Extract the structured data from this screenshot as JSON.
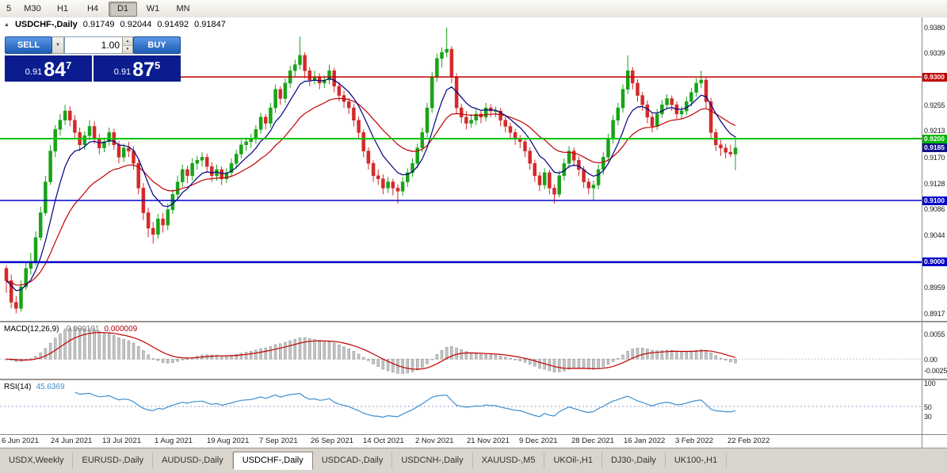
{
  "toolbar": {
    "timeframes": [
      {
        "label": "5",
        "active": false
      },
      {
        "label": "M30",
        "active": false
      },
      {
        "label": "H1",
        "active": false
      },
      {
        "label": "H4",
        "active": false
      },
      {
        "label": "D1",
        "active": true
      },
      {
        "label": "W1",
        "active": false
      },
      {
        "label": "MN",
        "active": false
      }
    ]
  },
  "chart": {
    "marker": "▲",
    "title": "USDCHF-,Daily",
    "ohlc": {
      "open": "0.91749",
      "high": "0.92044",
      "low": "0.91492",
      "close": "0.91847"
    },
    "trade_panel": {
      "sell_label": "SELL",
      "buy_label": "BUY",
      "volume": "1.00",
      "sell_price": {
        "prefix": "0.91",
        "big": "84",
        "sup": "7"
      },
      "buy_price": {
        "prefix": "0.91",
        "big": "87",
        "sup": "5"
      }
    },
    "price_axis_ticks": [
      "0.9380",
      "0.9339",
      "0.9297",
      "0.9255",
      "0.9213",
      "0.9170",
      "0.9128",
      "0.9086",
      "0.9044",
      "0.9002",
      "0.8959",
      "0.8917"
    ],
    "price_labels": [
      {
        "value": "0.9300",
        "color": "#c00000"
      },
      {
        "value": "0.9200",
        "color": "#00b400"
      },
      {
        "value": "0.9185",
        "color": "#12128c"
      },
      {
        "value": "0.9100",
        "color": "#0000c8"
      },
      {
        "value": "0.9000",
        "color": "#0000c8"
      }
    ],
    "hlines": [
      {
        "price": 0.93,
        "color": "#c00000",
        "width": 1.5,
        "from": 0.19
      },
      {
        "price": 0.92,
        "color": "#00c400",
        "width": 2,
        "from": 0
      },
      {
        "price": 0.91,
        "color": "#0000c8",
        "width": 1.5,
        "from": 0
      },
      {
        "price": 0.9,
        "color": "#0000c8",
        "width": 2.5,
        "from": 0
      }
    ]
  },
  "chart_data": {
    "type": "candlestick",
    "symbol": "USDCHF-",
    "timeframe": "Daily",
    "price_range": [
      0.891,
      0.939
    ],
    "up_color": "#18a318",
    "down_color": "#d42a2a",
    "ma_fast_period": 8,
    "ma_fast_color": "#000080",
    "ma_slow_period": 21,
    "ma_slow_color": "#c00000",
    "x_labels": [
      "6 Jun 2021",
      "24 Jun 2021",
      "13 Jul 2021",
      "1 Aug 2021",
      "19 Aug 2021",
      "7 Sep 2021",
      "26 Sep 2021",
      "14 Oct 2021",
      "2 Nov 2021",
      "21 Nov 2021",
      "9 Dec 2021",
      "28 Dec 2021",
      "16 Jan 2022",
      "3 Feb 2022",
      "22 Feb 2022"
    ],
    "candles": [
      [
        0.899,
        0.8995,
        0.895,
        0.897
      ],
      [
        0.897,
        0.898,
        0.8925,
        0.8935
      ],
      [
        0.8935,
        0.8945,
        0.8917,
        0.8925
      ],
      [
        0.8925,
        0.897,
        0.892,
        0.896
      ],
      [
        0.896,
        0.9,
        0.8955,
        0.899
      ],
      [
        0.899,
        0.9015,
        0.898,
        0.9
      ],
      [
        0.9,
        0.905,
        0.8995,
        0.904
      ],
      [
        0.904,
        0.909,
        0.9035,
        0.908
      ],
      [
        0.908,
        0.914,
        0.9075,
        0.913
      ],
      [
        0.913,
        0.919,
        0.9125,
        0.918
      ],
      [
        0.918,
        0.9222,
        0.917,
        0.9215
      ],
      [
        0.9215,
        0.924,
        0.9205,
        0.923
      ],
      [
        0.923,
        0.9255,
        0.9222,
        0.9245
      ],
      [
        0.9245,
        0.9252,
        0.922,
        0.923
      ],
      [
        0.923,
        0.9238,
        0.92,
        0.921
      ],
      [
        0.921,
        0.9218,
        0.918,
        0.919
      ],
      [
        0.919,
        0.9212,
        0.9182,
        0.9205
      ],
      [
        0.9205,
        0.923,
        0.9198,
        0.922
      ],
      [
        0.922,
        0.9228,
        0.9192,
        0.92
      ],
      [
        0.92,
        0.9208,
        0.9175,
        0.9185
      ],
      [
        0.9185,
        0.9202,
        0.9178,
        0.9195
      ],
      [
        0.9195,
        0.9218,
        0.9188,
        0.921
      ],
      [
        0.921,
        0.9216,
        0.9182,
        0.919
      ],
      [
        0.919,
        0.9196,
        0.916,
        0.917
      ],
      [
        0.917,
        0.9192,
        0.9162,
        0.9185
      ],
      [
        0.9185,
        0.9195,
        0.917,
        0.918
      ],
      [
        0.918,
        0.9188,
        0.915,
        0.916
      ],
      [
        0.916,
        0.9165,
        0.911,
        0.912
      ],
      [
        0.912,
        0.9128,
        0.9068,
        0.908
      ],
      [
        0.908,
        0.9088,
        0.904,
        0.9055
      ],
      [
        0.9055,
        0.9065,
        0.903,
        0.9045
      ],
      [
        0.9045,
        0.9078,
        0.9038,
        0.907
      ],
      [
        0.907,
        0.908,
        0.9048,
        0.906
      ],
      [
        0.906,
        0.9095,
        0.9052,
        0.9085
      ],
      [
        0.9085,
        0.9118,
        0.9078,
        0.911
      ],
      [
        0.911,
        0.914,
        0.9102,
        0.913
      ],
      [
        0.913,
        0.9158,
        0.9122,
        0.915
      ],
      [
        0.915,
        0.9156,
        0.9128,
        0.914
      ],
      [
        0.914,
        0.9168,
        0.9132,
        0.916
      ],
      [
        0.916,
        0.9172,
        0.915,
        0.9165
      ],
      [
        0.9165,
        0.9178,
        0.9155,
        0.917
      ],
      [
        0.917,
        0.9176,
        0.9145,
        0.9155
      ],
      [
        0.9155,
        0.9162,
        0.913,
        0.914
      ],
      [
        0.914,
        0.9158,
        0.9132,
        0.915
      ],
      [
        0.915,
        0.9155,
        0.9125,
        0.9135
      ],
      [
        0.9135,
        0.9152,
        0.9128,
        0.9145
      ],
      [
        0.9145,
        0.9168,
        0.9138,
        0.916
      ],
      [
        0.916,
        0.9182,
        0.9152,
        0.9175
      ],
      [
        0.9175,
        0.9198,
        0.9168,
        0.919
      ],
      [
        0.919,
        0.9202,
        0.918,
        0.9195
      ],
      [
        0.9195,
        0.9208,
        0.9185,
        0.92
      ],
      [
        0.92,
        0.9222,
        0.9192,
        0.9215
      ],
      [
        0.9215,
        0.9242,
        0.9208,
        0.9235
      ],
      [
        0.9235,
        0.924,
        0.9215,
        0.9225
      ],
      [
        0.9225,
        0.9258,
        0.9218,
        0.925
      ],
      [
        0.925,
        0.9288,
        0.9242,
        0.928
      ],
      [
        0.928,
        0.9285,
        0.9255,
        0.9265
      ],
      [
        0.9265,
        0.9298,
        0.9258,
        0.929
      ],
      [
        0.929,
        0.9318,
        0.9282,
        0.931
      ],
      [
        0.931,
        0.9328,
        0.93,
        0.932
      ],
      [
        0.932,
        0.9365,
        0.9312,
        0.9335
      ],
      [
        0.9335,
        0.934,
        0.9298,
        0.931
      ],
      [
        0.931,
        0.9316,
        0.9285,
        0.9295
      ],
      [
        0.9295,
        0.931,
        0.9288,
        0.93
      ],
      [
        0.93,
        0.9306,
        0.928,
        0.929
      ],
      [
        0.929,
        0.9302,
        0.9282,
        0.9295
      ],
      [
        0.9295,
        0.932,
        0.9288,
        0.931
      ],
      [
        0.931,
        0.9315,
        0.9275,
        0.9285
      ],
      [
        0.9285,
        0.9292,
        0.926,
        0.927
      ],
      [
        0.927,
        0.9278,
        0.925,
        0.926
      ],
      [
        0.926,
        0.9266,
        0.924,
        0.925
      ],
      [
        0.925,
        0.9256,
        0.922,
        0.923
      ],
      [
        0.923,
        0.9236,
        0.92,
        0.921
      ],
      [
        0.921,
        0.9215,
        0.917,
        0.918
      ],
      [
        0.918,
        0.9186,
        0.915,
        0.916
      ],
      [
        0.916,
        0.9165,
        0.913,
        0.914
      ],
      [
        0.914,
        0.915,
        0.9125,
        0.9135
      ],
      [
        0.9135,
        0.9142,
        0.911,
        0.912
      ],
      [
        0.912,
        0.9138,
        0.9112,
        0.913
      ],
      [
        0.913,
        0.9135,
        0.9108,
        0.912
      ],
      [
        0.912,
        0.9126,
        0.9095,
        0.9115
      ],
      [
        0.9115,
        0.9138,
        0.9108,
        0.913
      ],
      [
        0.913,
        0.9152,
        0.9122,
        0.9145
      ],
      [
        0.9145,
        0.9168,
        0.9138,
        0.916
      ],
      [
        0.916,
        0.9192,
        0.9152,
        0.9185
      ],
      [
        0.9185,
        0.9218,
        0.9178,
        0.921
      ],
      [
        0.921,
        0.9258,
        0.9202,
        0.925
      ],
      [
        0.925,
        0.9308,
        0.9242,
        0.93
      ],
      [
        0.93,
        0.9338,
        0.9292,
        0.933
      ],
      [
        0.933,
        0.9348,
        0.9315,
        0.934
      ],
      [
        0.934,
        0.938,
        0.9332,
        0.9345
      ],
      [
        0.9345,
        0.935,
        0.929,
        0.93
      ],
      [
        0.93,
        0.9306,
        0.924,
        0.925
      ],
      [
        0.925,
        0.9256,
        0.9225,
        0.9235
      ],
      [
        0.9235,
        0.9245,
        0.9215,
        0.9225
      ],
      [
        0.9225,
        0.924,
        0.9218,
        0.923
      ],
      [
        0.923,
        0.9248,
        0.9222,
        0.924
      ],
      [
        0.924,
        0.9246,
        0.9225,
        0.9235
      ],
      [
        0.9235,
        0.9258,
        0.9228,
        0.925
      ],
      [
        0.925,
        0.9256,
        0.9235,
        0.9245
      ],
      [
        0.9245,
        0.9252,
        0.9235,
        0.9245
      ],
      [
        0.9245,
        0.925,
        0.922,
        0.923
      ],
      [
        0.923,
        0.9236,
        0.921,
        0.922
      ],
      [
        0.922,
        0.9226,
        0.92,
        0.921
      ],
      [
        0.921,
        0.9216,
        0.919,
        0.92
      ],
      [
        0.92,
        0.9206,
        0.9185,
        0.9195
      ],
      [
        0.9195,
        0.92,
        0.917,
        0.918
      ],
      [
        0.918,
        0.9186,
        0.915,
        0.916
      ],
      [
        0.916,
        0.9166,
        0.913,
        0.914
      ],
      [
        0.914,
        0.9146,
        0.9115,
        0.9125
      ],
      [
        0.9125,
        0.9152,
        0.9118,
        0.9145
      ],
      [
        0.9145,
        0.915,
        0.911,
        0.912
      ],
      [
        0.912,
        0.9126,
        0.9095,
        0.911
      ],
      [
        0.911,
        0.9148,
        0.9105,
        0.914
      ],
      [
        0.914,
        0.9168,
        0.9132,
        0.916
      ],
      [
        0.916,
        0.9188,
        0.9152,
        0.918
      ],
      [
        0.918,
        0.9186,
        0.9155,
        0.9165
      ],
      [
        0.9165,
        0.9172,
        0.914,
        0.915
      ],
      [
        0.915,
        0.9156,
        0.912,
        0.913
      ],
      [
        0.913,
        0.9136,
        0.911,
        0.912
      ],
      [
        0.912,
        0.9132,
        0.91,
        0.9125
      ],
      [
        0.9125,
        0.9158,
        0.9118,
        0.915
      ],
      [
        0.915,
        0.9178,
        0.9142,
        0.917
      ],
      [
        0.917,
        0.9208,
        0.9162,
        0.92
      ],
      [
        0.92,
        0.9238,
        0.9192,
        0.923
      ],
      [
        0.923,
        0.9258,
        0.9222,
        0.925
      ],
      [
        0.925,
        0.9288,
        0.9242,
        0.928
      ],
      [
        0.928,
        0.9335,
        0.9272,
        0.931
      ],
      [
        0.931,
        0.9316,
        0.928,
        0.929
      ],
      [
        0.929,
        0.9296,
        0.926,
        0.927
      ],
      [
        0.927,
        0.9276,
        0.9245,
        0.9255
      ],
      [
        0.9255,
        0.9262,
        0.9225,
        0.9235
      ],
      [
        0.9235,
        0.9242,
        0.921,
        0.922
      ],
      [
        0.922,
        0.9248,
        0.9214,
        0.924
      ],
      [
        0.924,
        0.9263,
        0.9234,
        0.9255
      ],
      [
        0.9255,
        0.9272,
        0.9248,
        0.9265
      ],
      [
        0.9265,
        0.927,
        0.9245,
        0.9255
      ],
      [
        0.9255,
        0.926,
        0.9232,
        0.924
      ],
      [
        0.924,
        0.9252,
        0.9232,
        0.9245
      ],
      [
        0.9245,
        0.9268,
        0.9238,
        0.926
      ],
      [
        0.926,
        0.9282,
        0.9252,
        0.9275
      ],
      [
        0.9275,
        0.9298,
        0.9268,
        0.929
      ],
      [
        0.929,
        0.931,
        0.9282,
        0.9295
      ],
      [
        0.9295,
        0.93,
        0.925,
        0.926
      ],
      [
        0.926,
        0.9266,
        0.92,
        0.921
      ],
      [
        0.921,
        0.9216,
        0.918,
        0.919
      ],
      [
        0.919,
        0.9198,
        0.9172,
        0.9185
      ],
      [
        0.9185,
        0.9192,
        0.9168,
        0.9178
      ],
      [
        0.9178,
        0.919,
        0.917,
        0.9175
      ],
      [
        0.9175,
        0.9204,
        0.9149,
        0.9185
      ]
    ]
  },
  "macd": {
    "name": "MACD(12,26,9)",
    "value": "-0.000191",
    "signal_value": "0.000009",
    "histogram_color": "#c4c4c4",
    "signal_color": "#c00000",
    "ticks": [
      {
        "v": 0.0055,
        "label": "0.0055"
      },
      {
        "v": 0,
        "label": "0.00"
      },
      {
        "v": -0.0025,
        "label": "-0.0025"
      }
    ],
    "params": {
      "fast": 12,
      "slow": 26,
      "signal": 9
    }
  },
  "rsi": {
    "name": "RSI(14)",
    "value": "45.6369",
    "period": 14,
    "line_color": "#3e8fd0",
    "level": 50,
    "ticks": [
      {
        "v": 100,
        "label": "100"
      },
      {
        "v": 50,
        "label": "50"
      },
      {
        "v": 30,
        "label": "30"
      }
    ]
  },
  "tabs": [
    {
      "label": "USDX,Weekly",
      "active": false
    },
    {
      "label": "EURUSD-,Daily",
      "active": false
    },
    {
      "label": "AUDUSD-,Daily",
      "active": false
    },
    {
      "label": "USDCHF-,Daily",
      "active": true
    },
    {
      "label": "USDCAD-,Daily",
      "active": false
    },
    {
      "label": "USDCNH-,Daily",
      "active": false
    },
    {
      "label": "XAUUSD-,M5",
      "active": false
    },
    {
      "label": "UKOil-,H1",
      "active": false
    },
    {
      "label": "DJ30-,Daily",
      "active": false
    },
    {
      "label": "UK100-,H1",
      "active": false
    }
  ]
}
